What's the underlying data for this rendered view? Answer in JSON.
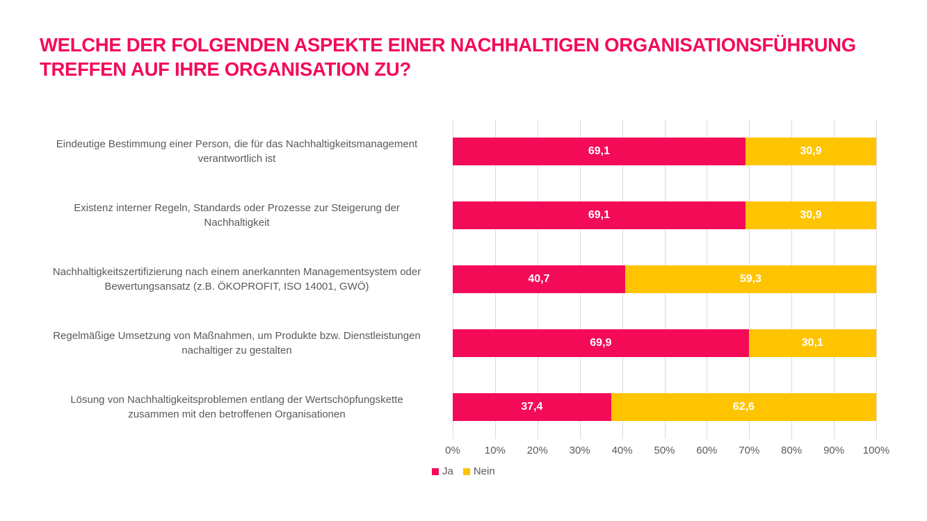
{
  "palette": {
    "accent_pink": "#F40B57",
    "accent_yellow": "#FFC400",
    "text_gray": "#595959",
    "gridline_gray": "#D9D9D9",
    "value_label_color": "#FFFFFF",
    "background": "#FFFFFF"
  },
  "title": {
    "line1": "WELCHE DER FOLGENDEN ASPEKTE EINER NACHHALTIGEN ORGANISATIONSFÜHRUNG",
    "line2": "TREFFEN AUF IHRE ORGANISATION ZU?"
  },
  "chart_data": {
    "type": "bar",
    "orientation": "horizontal",
    "stacked": true,
    "title": "WELCHE DER FOLGENDEN ASPEKTE EINER NACHHALTIGEN ORGANISATIONSFÜHRUNG TREFFEN AUF IHRE ORGANISATION ZU?",
    "categories": [
      [
        "Eindeutige Bestimmung einer Person, die für das Nachhaltigkeitsmanagement",
        "verantwortlich ist"
      ],
      [
        "Existenz interner Regeln, Standards oder Prozesse zur Steigerung der",
        "Nachhaltigkeit"
      ],
      [
        "Nachhaltigkeitszertifizierung nach einem anerkannten Managementsystem oder",
        "Bewertungsansatz (z.B. ÖKOPROFIT, ISO 14001, GWÖ)"
      ],
      [
        "Regelmäßige Umsetzung von Maßnahmen, um Produkte bzw. Dienstleistungen",
        "nachaltiger zu gestalten"
      ],
      [
        "Lösung von Nachhaltigkeitsproblemen entlang der Wertschöpfungskette",
        "zusammen mit den betroffenen Organisationen"
      ]
    ],
    "series": [
      {
        "name": "Ja",
        "color": "#F40B57",
        "values": [
          69.1,
          69.1,
          40.7,
          69.9,
          37.4
        ],
        "labels": [
          "69,1",
          "69,1",
          "40,7",
          "69,9",
          "37,4"
        ]
      },
      {
        "name": "Nein",
        "color": "#FFC400",
        "values": [
          30.9,
          30.9,
          59.3,
          30.1,
          62.6
        ],
        "labels": [
          "30,9",
          "30,9",
          "59,3",
          "30,1",
          "62,6"
        ]
      }
    ],
    "x_ticks": [
      "0%",
      "10%",
      "20%",
      "30%",
      "40%",
      "50%",
      "60%",
      "70%",
      "80%",
      "90%",
      "100%"
    ],
    "xlim": [
      0,
      100
    ],
    "grid": "vertical",
    "legend_position": "bottom-left",
    "legend": [
      "Ja",
      "Nein"
    ]
  }
}
